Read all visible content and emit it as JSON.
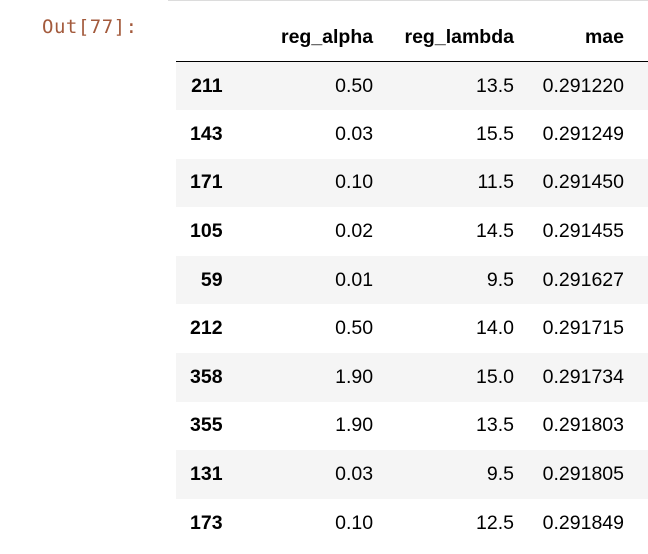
{
  "cell": {
    "prompt": "Out[77]:"
  },
  "table": {
    "columns": [
      "",
      "reg_alpha",
      "reg_lambda",
      "mae"
    ],
    "rows": [
      {
        "index": "211",
        "reg_alpha": "0.50",
        "reg_lambda": "13.5",
        "mae": "0.291220"
      },
      {
        "index": "143",
        "reg_alpha": "0.03",
        "reg_lambda": "15.5",
        "mae": "0.291249"
      },
      {
        "index": "171",
        "reg_alpha": "0.10",
        "reg_lambda": "11.5",
        "mae": "0.291450"
      },
      {
        "index": "105",
        "reg_alpha": "0.02",
        "reg_lambda": "14.5",
        "mae": "0.291455"
      },
      {
        "index": "59",
        "reg_alpha": "0.01",
        "reg_lambda": "9.5",
        "mae": "0.291627"
      },
      {
        "index": "212",
        "reg_alpha": "0.50",
        "reg_lambda": "14.0",
        "mae": "0.291715"
      },
      {
        "index": "358",
        "reg_alpha": "1.90",
        "reg_lambda": "15.0",
        "mae": "0.291734"
      },
      {
        "index": "355",
        "reg_alpha": "1.90",
        "reg_lambda": "13.5",
        "mae": "0.291803"
      },
      {
        "index": "131",
        "reg_alpha": "0.03",
        "reg_lambda": "9.5",
        "mae": "0.291805"
      },
      {
        "index": "173",
        "reg_alpha": "0.10",
        "reg_lambda": "12.5",
        "mae": "0.291849"
      }
    ]
  },
  "colors": {
    "prompt": "#a35a3c",
    "stripe": "#f5f5f5",
    "text": "#000000"
  }
}
